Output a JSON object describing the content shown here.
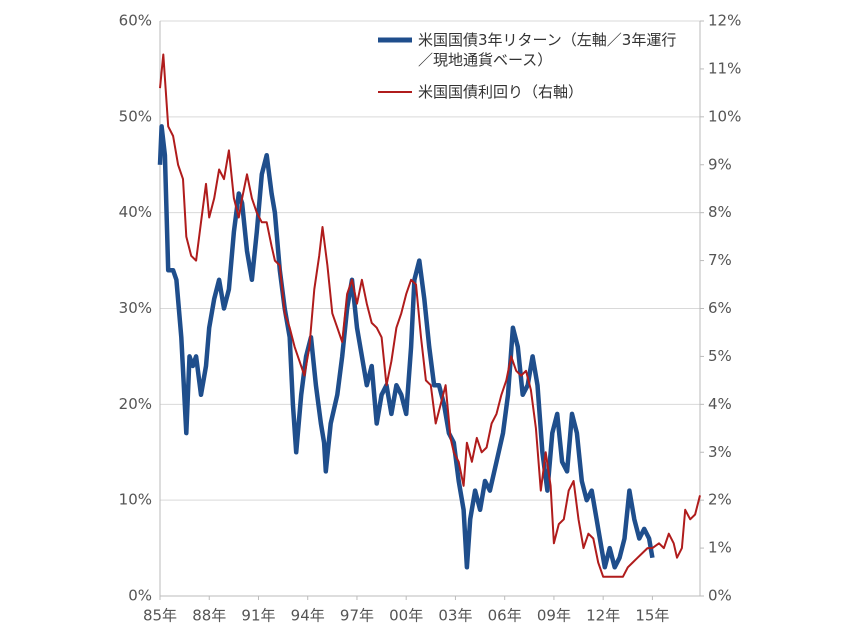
{
  "chart_data": {
    "type": "line",
    "xlim": [
      1985,
      2017.9
    ],
    "xticks": [
      {
        "value": 1985,
        "label": "85年"
      },
      {
        "value": 1988,
        "label": "88年"
      },
      {
        "value": 1991,
        "label": "91年"
      },
      {
        "value": 1994,
        "label": "94年"
      },
      {
        "value": 1997,
        "label": "97年"
      },
      {
        "value": 2000,
        "label": "00年"
      },
      {
        "value": 2003,
        "label": "03年"
      },
      {
        "value": 2006,
        "label": "06年"
      },
      {
        "value": 2009,
        "label": "09年"
      },
      {
        "value": 2012,
        "label": "12年"
      },
      {
        "value": 2015,
        "label": "15年"
      }
    ],
    "ylim": [
      0,
      60
    ],
    "yticks": [
      {
        "value": 0,
        "label": "0%"
      },
      {
        "value": 10,
        "label": "10%"
      },
      {
        "value": 20,
        "label": "20%"
      },
      {
        "value": 30,
        "label": "30%"
      },
      {
        "value": 40,
        "label": "40%"
      },
      {
        "value": 50,
        "label": "50%"
      },
      {
        "value": 60,
        "label": "60%"
      }
    ],
    "y2lim": [
      0,
      12
    ],
    "y2ticks": [
      {
        "value": 0,
        "label": "0%"
      },
      {
        "value": 1,
        "label": "1%"
      },
      {
        "value": 2,
        "label": "2%"
      },
      {
        "value": 3,
        "label": "3%"
      },
      {
        "value": 4,
        "label": "4%"
      },
      {
        "value": 5,
        "label": "5%"
      },
      {
        "value": 6,
        "label": "6%"
      },
      {
        "value": 7,
        "label": "7%"
      },
      {
        "value": 8,
        "label": "8%"
      },
      {
        "value": 9,
        "label": "9%"
      },
      {
        "value": 10,
        "label": "10%"
      },
      {
        "value": 11,
        "label": "11%"
      },
      {
        "value": 12,
        "label": "12%"
      }
    ],
    "grid": true,
    "legend": "top-right",
    "series": [
      {
        "name": "米国国債3年リターン（左軸／3年運行／現地通貨ベース）",
        "color": "#1f4e8c",
        "axis": "y",
        "x": [
          1985.0,
          1985.1,
          1985.3,
          1985.5,
          1985.8,
          1986.0,
          1986.3,
          1986.6,
          1986.8,
          1987.0,
          1987.2,
          1987.5,
          1987.8,
          1988.0,
          1988.3,
          1988.6,
          1988.9,
          1989.2,
          1989.5,
          1989.8,
          1990.0,
          1990.3,
          1990.6,
          1990.9,
          1991.2,
          1991.5,
          1991.8,
          1992.0,
          1992.3,
          1992.6,
          1992.9,
          1993.1,
          1993.3,
          1993.6,
          1993.9,
          1994.2,
          1994.5,
          1994.8,
          1995.0,
          1995.1,
          1995.4,
          1995.8,
          1996.1,
          1996.4,
          1996.7,
          1997.0,
          1997.3,
          1997.6,
          1997.9,
          1998.2,
          1998.5,
          1998.8,
          1999.1,
          1999.4,
          1999.7,
          2000.0,
          2000.3,
          2000.5,
          2000.8,
          2001.1,
          2001.4,
          2001.7,
          2002.0,
          2002.3,
          2002.6,
          2002.9,
          2003.2,
          2003.5,
          2003.7,
          2003.9,
          2004.2,
          2004.5,
          2004.8,
          2005.1,
          2005.5,
          2005.9,
          2006.2,
          2006.5,
          2006.8,
          2007.1,
          2007.4,
          2007.7,
          2008.0,
          2008.3,
          2008.6,
          2008.9,
          2009.2,
          2009.5,
          2009.8,
          2010.1,
          2010.4,
          2010.7,
          2011.0,
          2011.3,
          2011.6,
          2011.9,
          2012.1,
          2012.4,
          2012.7,
          2013.0,
          2013.3,
          2013.6,
          2013.9,
          2014.2,
          2014.5,
          2014.8,
          2015.0
        ],
        "values": [
          45,
          49,
          46,
          34,
          34,
          33,
          27,
          17,
          25,
          24,
          25,
          21,
          24,
          28,
          31,
          33,
          30,
          32,
          38,
          42,
          41,
          36,
          33,
          38,
          44,
          46,
          42,
          40,
          34,
          30,
          27,
          20,
          15,
          21,
          25,
          27,
          22,
          18,
          16,
          13,
          18,
          21,
          25,
          30,
          33,
          28,
          25,
          22,
          24,
          18,
          21,
          22,
          19,
          22,
          21,
          19,
          26,
          33,
          35,
          31,
          26,
          22,
          22,
          20,
          17,
          16,
          12,
          9,
          3,
          8,
          11,
          9,
          12,
          11,
          14,
          17,
          21,
          28,
          26,
          21,
          22,
          25,
          22,
          15,
          11,
          17,
          19,
          14,
          13,
          19,
          17,
          12,
          10,
          11,
          8,
          5,
          3,
          5,
          3,
          4,
          6,
          11,
          8,
          6,
          7,
          6,
          4
        ]
      },
      {
        "name": "米国国債利回り（右軸）",
        "color": "#b01c1c",
        "axis": "y2",
        "x": [
          1985.0,
          1985.2,
          1985.5,
          1985.8,
          1986.1,
          1986.4,
          1986.6,
          1986.9,
          1987.2,
          1987.5,
          1987.8,
          1988.0,
          1988.3,
          1988.6,
          1988.9,
          1989.2,
          1989.5,
          1989.8,
          1990.0,
          1990.3,
          1990.6,
          1990.9,
          1991.2,
          1991.5,
          1991.8,
          1992.0,
          1992.3,
          1992.6,
          1992.9,
          1993.2,
          1993.5,
          1993.8,
          1994.1,
          1994.4,
          1994.7,
          1994.9,
          1995.2,
          1995.5,
          1995.8,
          1996.1,
          1996.4,
          1996.7,
          1997.0,
          1997.3,
          1997.6,
          1997.9,
          1998.2,
          1998.5,
          1998.8,
          1999.1,
          1999.4,
          1999.7,
          2000.0,
          2000.3,
          2000.6,
          2000.9,
          2001.2,
          2001.5,
          2001.8,
          2002.1,
          2002.4,
          2002.7,
          2002.9,
          2003.2,
          2003.5,
          2003.7,
          2004.0,
          2004.3,
          2004.6,
          2004.9,
          2005.2,
          2005.5,
          2005.8,
          2006.1,
          2006.4,
          2006.7,
          2007.0,
          2007.3,
          2007.6,
          2007.9,
          2008.2,
          2008.5,
          2008.8,
          2009.0,
          2009.3,
          2009.6,
          2009.9,
          2010.2,
          2010.5,
          2010.8,
          2011.1,
          2011.4,
          2011.7,
          2012.0,
          2012.3,
          2012.6,
          2012.9,
          2013.2,
          2013.5,
          2013.8,
          2014.1,
          2014.4,
          2014.7,
          2015.0,
          2015.4,
          2015.7,
          2016.0,
          2016.3,
          2016.5,
          2016.8,
          2017.0,
          2017.3,
          2017.6,
          2017.9
        ],
        "values": [
          10.6,
          11.3,
          9.8,
          9.6,
          9.0,
          8.7,
          7.5,
          7.1,
          7.0,
          7.8,
          8.6,
          7.9,
          8.3,
          8.9,
          8.7,
          9.3,
          8.3,
          7.9,
          8.3,
          8.8,
          8.3,
          8.0,
          7.8,
          7.8,
          7.3,
          7.0,
          6.9,
          5.9,
          5.6,
          5.2,
          4.9,
          4.6,
          5.2,
          6.4,
          7.1,
          7.7,
          6.9,
          5.9,
          5.6,
          5.3,
          6.3,
          6.6,
          6.1,
          6.6,
          6.1,
          5.7,
          5.6,
          5.4,
          4.4,
          4.9,
          5.6,
          5.9,
          6.3,
          6.6,
          6.5,
          5.4,
          4.5,
          4.4,
          3.6,
          4.0,
          4.4,
          3.3,
          3.0,
          2.8,
          2.3,
          3.2,
          2.8,
          3.3,
          3.0,
          3.1,
          3.6,
          3.8,
          4.2,
          4.5,
          5.0,
          4.7,
          4.6,
          4.7,
          4.3,
          3.5,
          2.2,
          3.0,
          2.3,
          1.1,
          1.5,
          1.6,
          2.2,
          2.4,
          1.6,
          1.0,
          1.3,
          1.2,
          0.7,
          0.4,
          0.4,
          0.4,
          0.4,
          0.4,
          0.6,
          0.7,
          0.8,
          0.9,
          1.0,
          1.0,
          1.1,
          1.0,
          1.3,
          1.1,
          0.8,
          1.0,
          1.8,
          1.6,
          1.7,
          2.1
        ]
      }
    ]
  }
}
